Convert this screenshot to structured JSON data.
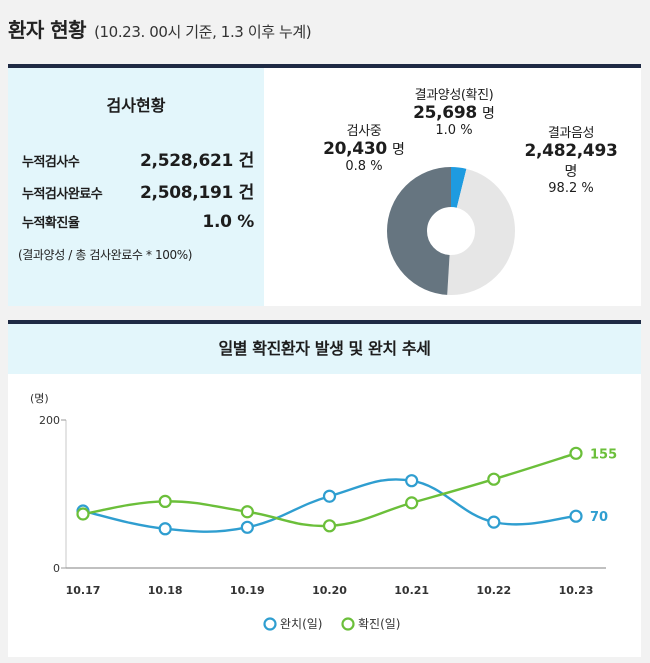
{
  "header": {
    "title": "환자 현황",
    "subtitle": "(10.23. 00시 기준, 1.3 이후 누계)"
  },
  "test_status": {
    "title": "검사현황",
    "rows": [
      {
        "label": "누적검사수",
        "value": "2,528,621 건"
      },
      {
        "label": "누적검사완료수",
        "value": "2,508,191 건"
      },
      {
        "label": "누적확진율",
        "value": "1.0 %"
      }
    ],
    "note": "(결과양성 / 총 검사완료수 * 100%)"
  },
  "donut": {
    "segments": [
      {
        "name": "결과양성(확진)",
        "value": "25,698",
        "unit": "명",
        "pct": "1.0 %",
        "fraction": 0.01,
        "color": "#1e9be0"
      },
      {
        "name": "결과음성",
        "value": "2,482,493",
        "unit": "명",
        "pct": "98.2 %",
        "fraction": 0.982,
        "color": "#e6e6e6"
      },
      {
        "name": "검사중",
        "value": "20,430",
        "unit": "명",
        "pct": "0.8 %",
        "fraction": 0.008,
        "color": "#667580"
      }
    ]
  },
  "colors": {
    "navy_bar": "#1f2a44",
    "panel_bg": "#e3f6fb",
    "released": "#2f9ed0",
    "confirmed": "#6bbf3a"
  },
  "chart_data": {
    "type": "line",
    "title": "일별 확진환자 발생 및 완치 추세",
    "ylabel": "(명)",
    "xlabel": "",
    "ylim": [
      0,
      200
    ],
    "yticks": [
      "0",
      "200"
    ],
    "categories": [
      "10.17",
      "10.18",
      "10.19",
      "10.20",
      "10.21",
      "10.22",
      "10.23"
    ],
    "series": [
      {
        "name": "완치(일)",
        "values": [
          77,
          53,
          55,
          97,
          118,
          62,
          70
        ],
        "color": "#2f9ed0",
        "end_label": "70"
      },
      {
        "name": "확진(일)",
        "values": [
          73,
          90,
          76,
          57,
          88,
          120,
          155
        ],
        "color": "#6bbf3a",
        "end_label": "155"
      }
    ],
    "legend": "bottom-center",
    "grid": false
  }
}
